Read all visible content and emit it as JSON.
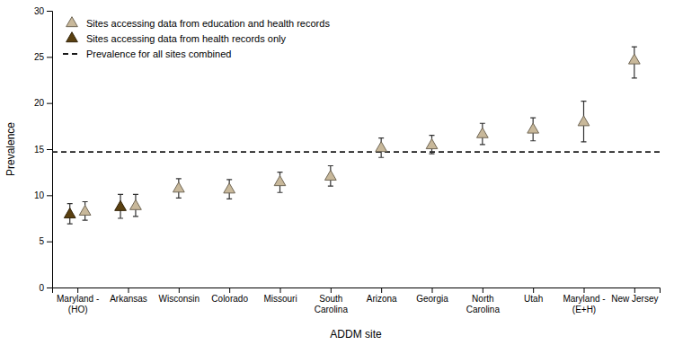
{
  "chart_data": {
    "type": "scatter",
    "xlabel": "ADDM site",
    "ylabel": "Prevalence",
    "categories": [
      "Maryland -\n(HO)",
      "Arkansas",
      "Wisconsin",
      "Colorado",
      "Missouri",
      "South\nCarolina",
      "Arizona",
      "Georgia",
      "North\nCarolina",
      "Utah",
      "Maryland -\n(E+H)",
      "New Jersey"
    ],
    "ylim": [
      0,
      30
    ],
    "yticks": [
      0,
      5,
      10,
      15,
      20,
      25,
      30
    ],
    "legend": "upper left",
    "series": [
      {
        "name": "Sites accessing data from education and health records",
        "color": "#c8b89a",
        "marker": "triangle",
        "values": [
          8.2,
          8.8,
          10.7,
          10.6,
          11.4,
          12.0,
          15.1,
          15.4,
          16.6,
          17.1,
          17.9,
          24.6
        ],
        "lower": [
          7.3,
          7.7,
          9.7,
          9.6,
          10.3,
          11.0,
          14.1,
          14.5,
          15.5,
          15.9,
          15.8,
          22.7
        ],
        "upper": [
          9.3,
          10.1,
          11.8,
          11.7,
          12.5,
          13.2,
          16.2,
          16.5,
          17.8,
          18.4,
          20.2,
          26.1
        ]
      },
      {
        "name": "Sites accessing data from health records only",
        "color": "#5a4010",
        "marker": "triangle",
        "values": [
          7.9,
          8.7,
          null,
          null,
          null,
          null,
          null,
          null,
          null,
          null,
          null,
          null
        ],
        "lower": [
          6.9,
          7.5,
          null,
          null,
          null,
          null,
          null,
          null,
          null,
          null,
          null,
          null
        ],
        "upper": [
          9.1,
          10.1,
          null,
          null,
          null,
          null,
          null,
          null,
          null,
          null,
          null,
          null
        ]
      }
    ],
    "hline": {
      "name": "Prevalence for all sites combined",
      "value": 14.7,
      "color": "#1a1a1a",
      "line_style": "dashed"
    }
  }
}
